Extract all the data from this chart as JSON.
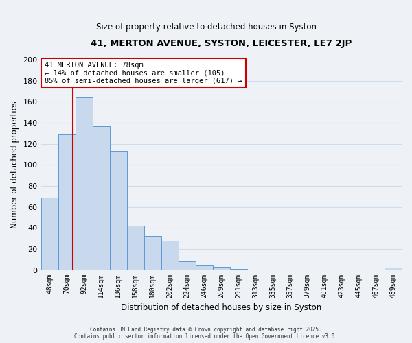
{
  "title": "41, MERTON AVENUE, SYSTON, LEICESTER, LE7 2JP",
  "subtitle": "Size of property relative to detached houses in Syston",
  "xlabel": "Distribution of detached houses by size in Syston",
  "ylabel": "Number of detached properties",
  "bar_labels": [
    "48sqm",
    "70sqm",
    "92sqm",
    "114sqm",
    "136sqm",
    "158sqm",
    "180sqm",
    "202sqm",
    "224sqm",
    "246sqm",
    "269sqm",
    "291sqm",
    "313sqm",
    "335sqm",
    "357sqm",
    "379sqm",
    "401sqm",
    "423sqm",
    "445sqm",
    "467sqm",
    "489sqm"
  ],
  "bar_values": [
    69,
    129,
    164,
    137,
    113,
    42,
    32,
    28,
    8,
    4,
    3,
    1,
    0,
    0,
    0,
    0,
    0,
    0,
    0,
    0,
    2
  ],
  "bar_fill_color": "#c9d9ed",
  "bar_edge_color": "#5b9bd5",
  "grid_color": "#ccddee",
  "ylim": [
    0,
    200
  ],
  "yticks": [
    0,
    20,
    40,
    60,
    80,
    100,
    120,
    140,
    160,
    180,
    200
  ],
  "property_line_color": "#cc0000",
  "annotation_line1": "41 MERTON AVENUE: 78sqm",
  "annotation_line2": "← 14% of detached houses are smaller (105)",
  "annotation_line3": "85% of semi-detached houses are larger (617) →",
  "annotation_box_color": "#ffffff",
  "annotation_box_edge": "#cc0000",
  "footer_line1": "Contains HM Land Registry data © Crown copyright and database right 2025.",
  "footer_line2": "Contains public sector information licensed under the Open Government Licence v3.0.",
  "background_color": "#eef2f7",
  "plot_bg_color": "#eef2f7"
}
